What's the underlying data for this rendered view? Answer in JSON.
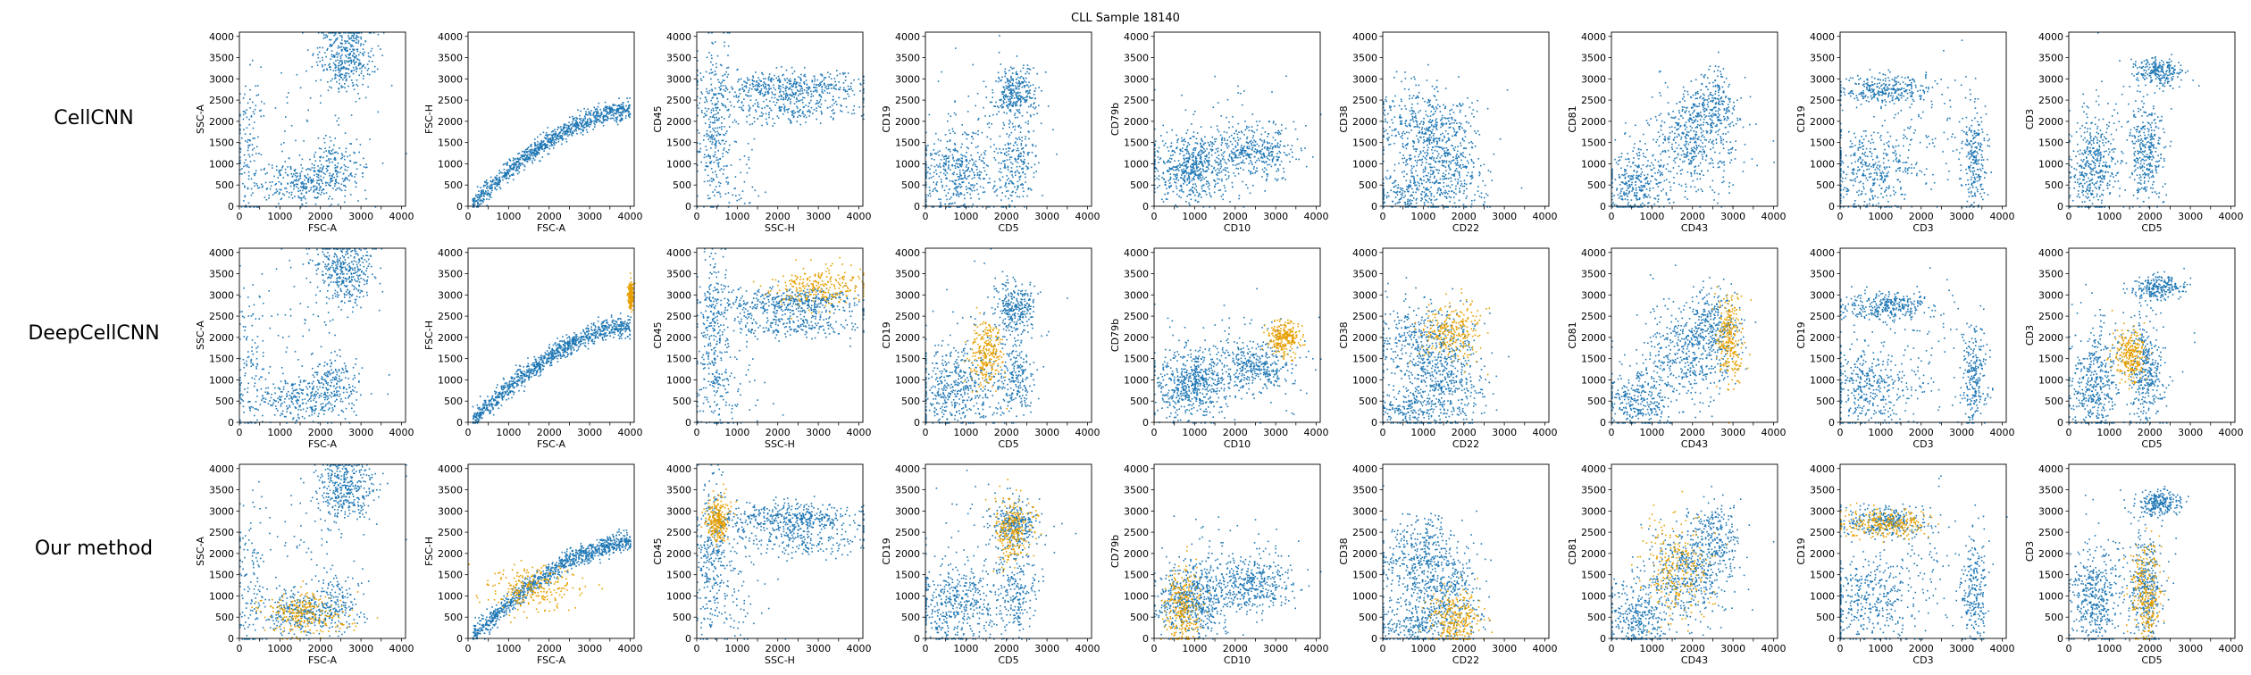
{
  "chart_data": {
    "type": "scatter",
    "title": "CLL Sample 18140",
    "rows": [
      "CellCNN",
      "DeepCellCNN",
      "Our method"
    ],
    "ticks": [
      "0",
      "500",
      "1000",
      "1500",
      "2000",
      "2500",
      "3000",
      "3500",
      "4000"
    ],
    "xlim": [
      0,
      4100
    ],
    "ylim": [
      0,
      4100
    ],
    "series_colors": {
      "cells": "#1f77b4",
      "selected": "#e69f00"
    },
    "panels": [
      {
        "xlabel": "FSC-A",
        "ylabel": "SSC-A",
        "clusters": [
          {
            "cx": 2600,
            "cy": 3550,
            "sx": 350,
            "sy": 400,
            "w": 6
          },
          {
            "cx": 1600,
            "cy": 600,
            "sx": 600,
            "sy": 250,
            "w": 5
          },
          {
            "cx": 2300,
            "cy": 1000,
            "sx": 300,
            "sy": 300,
            "w": 2
          },
          {
            "cx": 250,
            "cy": 1200,
            "sx": 200,
            "sy": 900,
            "w": 2
          },
          {
            "cx": 1800,
            "cy": 2200,
            "sx": 1000,
            "sy": 1000,
            "w": 1
          }
        ],
        "sel": [
          null,
          null,
          {
            "cx": 1600,
            "cy": 600,
            "sx": 500,
            "sy": 250
          }
        ]
      },
      {
        "xlabel": "FSC-A",
        "ylabel": "FSC-H",
        "clusters": [
          {
            "curve": true,
            "x0": 100,
            "x1": 4000,
            "w": 10
          }
        ],
        "sel": [
          null,
          {
            "cx": 4000,
            "cy": 3000,
            "sx": 30,
            "sy": 150
          },
          {
            "cx": 1600,
            "cy": 1200,
            "sx": 600,
            "sy": 250
          }
        ]
      },
      {
        "xlabel": "SSC-H",
        "ylabel": "CD45",
        "clusters": [
          {
            "cx": 2300,
            "cy": 2850,
            "sx": 900,
            "sy": 180,
            "w": 6
          },
          {
            "cx": 2300,
            "cy": 2300,
            "sx": 900,
            "sy": 180,
            "w": 3
          },
          {
            "cx": 400,
            "cy": 2000,
            "sx": 200,
            "sy": 1000,
            "w": 4
          },
          {
            "cx": 800,
            "cy": 800,
            "sx": 500,
            "sy": 600,
            "w": 1
          }
        ],
        "sel": [
          null,
          {
            "cx": 3000,
            "cy": 3200,
            "sx": 600,
            "sy": 250
          },
          {
            "cx": 500,
            "cy": 2800,
            "sx": 150,
            "sy": 250
          }
        ]
      },
      {
        "xlabel": "CD5",
        "ylabel": "CD19",
        "clusters": [
          {
            "cx": 2200,
            "cy": 2700,
            "sx": 250,
            "sy": 300,
            "w": 4
          },
          {
            "cx": 700,
            "cy": 800,
            "sx": 500,
            "sy": 500,
            "w": 6
          },
          {
            "cx": 2200,
            "cy": 1000,
            "sx": 250,
            "sy": 500,
            "w": 3
          },
          {
            "cx": 1500,
            "cy": 2000,
            "sx": 800,
            "sy": 800,
            "w": 1
          }
        ],
        "sel": [
          null,
          {
            "cx": 1500,
            "cy": 1600,
            "sx": 200,
            "sy": 400
          },
          {
            "cx": 2150,
            "cy": 2600,
            "sx": 250,
            "sy": 350
          }
        ]
      },
      {
        "xlabel": "CD10",
        "ylabel": "CD79b",
        "clusters": [
          {
            "cx": 900,
            "cy": 900,
            "sx": 450,
            "sy": 400,
            "w": 6
          },
          {
            "cx": 2500,
            "cy": 1300,
            "sx": 500,
            "sy": 300,
            "w": 4
          },
          {
            "cx": 1800,
            "cy": 1600,
            "sx": 900,
            "sy": 700,
            "w": 1
          }
        ],
        "sel": [
          null,
          {
            "cx": 3200,
            "cy": 2000,
            "sx": 200,
            "sy": 200
          },
          {
            "cx": 700,
            "cy": 800,
            "sx": 250,
            "sy": 500
          }
        ]
      },
      {
        "xlabel": "CD22",
        "ylabel": "CD38",
        "clusters": [
          {
            "cx": 1000,
            "cy": 1900,
            "sx": 600,
            "sy": 500,
            "w": 5
          },
          {
            "cx": 1500,
            "cy": 800,
            "sx": 500,
            "sy": 500,
            "w": 4
          },
          {
            "cx": 600,
            "cy": 300,
            "sx": 500,
            "sy": 250,
            "w": 2
          }
        ],
        "sel": [
          null,
          {
            "cx": 1700,
            "cy": 2200,
            "sx": 400,
            "sy": 350
          },
          {
            "cx": 1800,
            "cy": 500,
            "sx": 300,
            "sy": 350
          }
        ]
      },
      {
        "xlabel": "CD43",
        "ylabel": "CD81",
        "clusters": [
          {
            "cx": 1900,
            "cy": 1600,
            "sx": 600,
            "sy": 600,
            "w": 5
          },
          {
            "cx": 600,
            "cy": 500,
            "sx": 400,
            "sy": 400,
            "w": 3
          },
          {
            "cx": 2500,
            "cy": 2400,
            "sx": 300,
            "sy": 400,
            "w": 2
          }
        ],
        "sel": [
          null,
          {
            "cx": 2900,
            "cy": 2000,
            "sx": 150,
            "sy": 500
          },
          {
            "cx": 1600,
            "cy": 1600,
            "sx": 400,
            "sy": 600
          }
        ]
      },
      {
        "xlabel": "CD3",
        "ylabel": "CD19",
        "clusters": [
          {
            "cx": 1100,
            "cy": 2750,
            "sx": 550,
            "sy": 180,
            "w": 4
          },
          {
            "cx": 700,
            "cy": 900,
            "sx": 600,
            "sy": 500,
            "w": 5
          },
          {
            "cx": 3300,
            "cy": 1100,
            "sx": 150,
            "sy": 600,
            "w": 3
          },
          {
            "cx": 2200,
            "cy": 1800,
            "sx": 700,
            "sy": 800,
            "w": 1
          }
        ],
        "sel": [
          null,
          null,
          {
            "cx": 1100,
            "cy": 2700,
            "sx": 550,
            "sy": 180
          }
        ]
      },
      {
        "xlabel": "CD5",
        "ylabel": "CD3",
        "clusters": [
          {
            "cx": 2200,
            "cy": 3200,
            "sx": 300,
            "sy": 150,
            "w": 3
          },
          {
            "cx": 600,
            "cy": 900,
            "sx": 300,
            "sy": 600,
            "w": 5
          },
          {
            "cx": 1900,
            "cy": 1200,
            "sx": 200,
            "sy": 600,
            "w": 4
          },
          {
            "cx": 1200,
            "cy": 1800,
            "sx": 700,
            "sy": 700,
            "w": 1
          }
        ],
        "sel": [
          null,
          {
            "cx": 1500,
            "cy": 1600,
            "sx": 200,
            "sy": 300
          },
          {
            "cx": 1900,
            "cy": 1100,
            "sx": 200,
            "sy": 600
          }
        ]
      }
    ]
  }
}
